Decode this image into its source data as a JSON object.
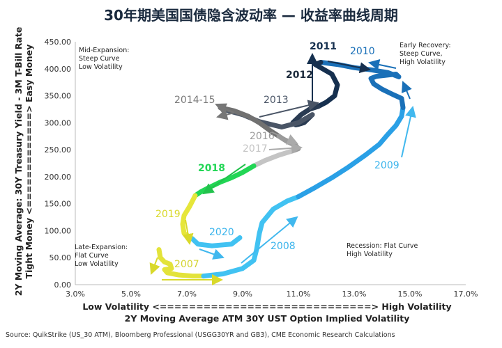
{
  "title": "30年期美国国债隐含波动率 — 收益率曲线周期",
  "source": "Source: QuikStrike (US_30 ATM), Bloomberg Professional (USGG30YR and GB3), CME Economic Research Calculations",
  "chart_data": {
    "type": "line",
    "xlabel_1": "Low Volatility <=============================> High Volatility",
    "xlabel_2": "2Y Moving Average ATM 30Y UST Option Implied Volatility",
    "ylabel_1": "2Y Moving Average: 30Y Treasury Yield - 3M T-Bill Rate",
    "ylabel_2": "Tight Money <=============> Easy Money",
    "xlim": [
      3,
      17
    ],
    "ylim": [
      0,
      450
    ],
    "x_ticks": [
      {
        "v": 3,
        "label": "3.0%"
      },
      {
        "v": 5,
        "label": "5.0%"
      },
      {
        "v": 7,
        "label": "7.0%"
      },
      {
        "v": 9,
        "label": "9.0%"
      },
      {
        "v": 11,
        "label": "11.0%"
      },
      {
        "v": 13,
        "label": "13.0%"
      },
      {
        "v": 15,
        "label": "15.0%"
      },
      {
        "v": 17,
        "label": "17.0%"
      }
    ],
    "y_ticks": [
      {
        "v": 0,
        "label": "0.00"
      },
      {
        "v": 50,
        "label": "50.00"
      },
      {
        "v": 100,
        "label": "100.00"
      },
      {
        "v": 150,
        "label": "150.00"
      },
      {
        "v": 200,
        "label": "200.00"
      },
      {
        "v": 250,
        "label": "250.00"
      },
      {
        "v": 300,
        "label": "300.00"
      },
      {
        "v": 350,
        "label": "350.00"
      },
      {
        "v": 400,
        "label": "400.00"
      },
      {
        "v": 450,
        "label": "450.00"
      }
    ],
    "series": [
      {
        "name": "2007",
        "color": "#e3e33a",
        "x": [
          6.0,
          6.05,
          6.2,
          6.4,
          6.45,
          6.2,
          6.3,
          6.7,
          7.2,
          7.6
        ],
        "y": [
          65,
          50,
          42,
          38,
          30,
          28,
          22,
          18,
          16,
          16
        ]
      },
      {
        "name": "2008",
        "color": "#41c2f2",
        "x": [
          7.6,
          8.3,
          9.0,
          9.4,
          9.5,
          9.6,
          9.7,
          10.1,
          10.6,
          11.0
        ],
        "y": [
          16,
          20,
          30,
          45,
          65,
          95,
          115,
          140,
          155,
          163
        ]
      },
      {
        "name": "2009",
        "color": "#2aa0e6",
        "x": [
          11.0,
          11.6,
          12.2,
          12.8,
          13.4,
          13.9,
          14.2,
          14.5,
          14.7,
          14.75
        ],
        "y": [
          163,
          180,
          198,
          218,
          240,
          260,
          278,
          295,
          312,
          328
        ]
      },
      {
        "name": "2010",
        "color": "#1a70b8",
        "x": [
          14.75,
          14.7,
          14.4,
          14.0,
          13.7,
          13.6,
          13.8,
          14.5,
          14.6,
          14.2,
          13.6,
          13.0,
          12.4,
          11.8
        ],
        "y": [
          328,
          345,
          352,
          362,
          372,
          382,
          386,
          390,
          385,
          393,
          398,
          402,
          408,
          412
        ]
      },
      {
        "name": "2011",
        "color": "#16304f",
        "x": [
          11.8,
          11.6,
          12.2,
          12.4,
          12.3,
          12.0,
          11.7
        ],
        "y": [
          412,
          408,
          390,
          370,
          350,
          338,
          330
        ]
      },
      {
        "name": "2012",
        "color": "#2a3b52",
        "x": [
          11.7,
          11.4,
          11.1,
          10.8,
          10.9,
          11.0,
          11.2,
          11.5
        ],
        "y": [
          330,
          325,
          315,
          300,
          296,
          297,
          300,
          315
        ]
      },
      {
        "name": "2013",
        "color": "#4a5566",
        "x": [
          11.5,
          11.0,
          10.4,
          9.6,
          9.0,
          8.5,
          8.2
        ],
        "y": [
          315,
          300,
          292,
          302,
          315,
          322,
          328
        ]
      },
      {
        "name": "2014-15",
        "color": "#717171",
        "x": [
          8.2,
          8.7,
          9.2,
          9.6,
          10.0,
          10.3
        ],
        "y": [
          328,
          322,
          312,
          300,
          285,
          275
        ]
      },
      {
        "name": "2016",
        "color": "#9b9b9b",
        "x": [
          10.3,
          10.6,
          10.9,
          11.0,
          10.8
        ],
        "y": [
          275,
          265,
          258,
          252,
          248
        ]
      },
      {
        "name": "2017",
        "color": "#c4c4c4",
        "x": [
          10.8,
          10.3,
          9.8,
          9.4
        ],
        "y": [
          248,
          240,
          230,
          220
        ]
      },
      {
        "name": "2018",
        "color": "#22d655",
        "x": [
          9.4,
          9.0,
          8.6,
          8.2,
          7.8,
          7.5,
          7.3
        ],
        "y": [
          220,
          208,
          198,
          190,
          180,
          172,
          165
        ]
      },
      {
        "name": "2019",
        "color": "#e6e63a",
        "x": [
          7.3,
          7.1,
          6.9,
          6.85,
          6.9,
          7.2
        ],
        "y": [
          165,
          145,
          128,
          112,
          95,
          85
        ]
      },
      {
        "name": "2020",
        "color": "#41c2f2",
        "x": [
          7.2,
          7.4,
          7.9,
          8.6,
          8.9
        ],
        "y": [
          85,
          75,
          72,
          75,
          87
        ]
      }
    ],
    "region_labels": [
      {
        "name": "mid-expansion",
        "lines": [
          "Mid-Expansion:",
          "Steep Curve",
          "Low Volatility"
        ]
      },
      {
        "name": "early-recovery",
        "lines": [
          "Early Recovery:",
          "Steep Curve,",
          "High Volatility"
        ]
      },
      {
        "name": "late-expansion",
        "lines": [
          "Late-Expansion:",
          "Flat Curve",
          "Low Volatility"
        ]
      },
      {
        "name": "recession",
        "lines": [
          "Recession: Flat Curve",
          "High Volatility"
        ]
      }
    ]
  }
}
